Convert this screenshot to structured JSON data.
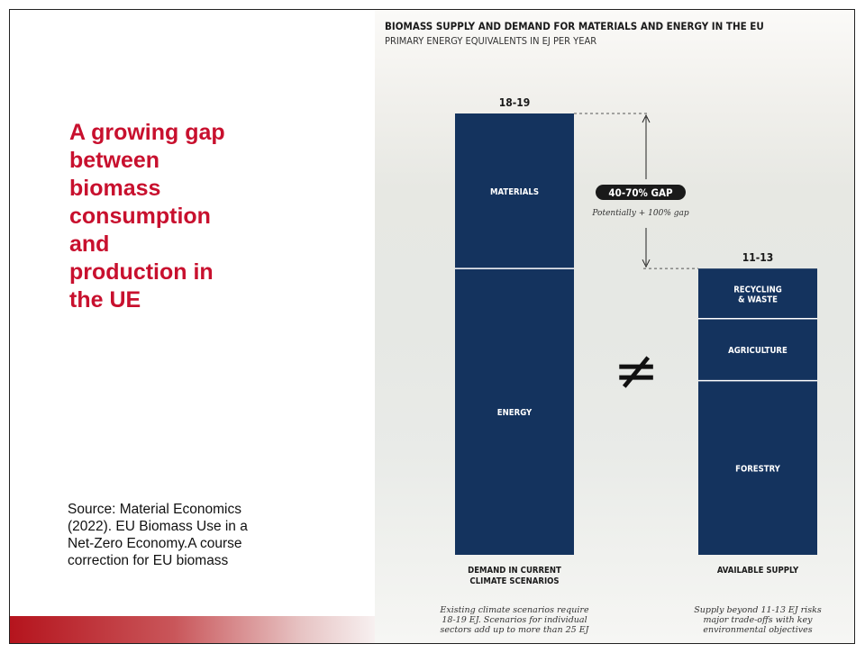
{
  "slide": {
    "title_lines": [
      "A growing gap",
      "between",
      "biomass",
      "consumption",
      "and",
      "production in",
      "the UE"
    ],
    "source_lines": [
      "Source: Material Economics",
      "(2022). EU Biomass Use in a",
      "Net-Zero Economy.A course",
      "correction for EU biomass"
    ]
  },
  "chart_data": {
    "type": "bar",
    "stacked": true,
    "title": "BIOMASS SUPPLY AND DEMAND FOR MATERIALS AND ENERGY IN THE EU",
    "subtitle": "PRIMARY ENERGY EQUIVALENTS IN EJ PER YEAR",
    "unit": "EJ",
    "bars": [
      {
        "label_lines": [
          "DEMAND IN CURRENT",
          "CLIMATE SCENARIOS"
        ],
        "total_label": "18-19",
        "total": 18.5,
        "segments": [
          {
            "name": "ENERGY",
            "value": 12.0
          },
          {
            "name": "MATERIALS",
            "value": 6.5
          }
        ],
        "note_lines": [
          "Existing climate scenarios require",
          "18-19 EJ. Scenarios for individual",
          "sectors add up to more than 25 EJ"
        ]
      },
      {
        "label_lines": [
          "AVAILABLE SUPPLY"
        ],
        "total_label": "11-13",
        "total": 12.0,
        "segments": [
          {
            "name": "FORESTRY",
            "value": 7.3
          },
          {
            "name": "AGRICULTURE",
            "value": 2.6
          },
          {
            "name": "RECYCLING\n& WASTE",
            "value": 2.1
          }
        ],
        "note_lines": [
          "Supply beyond 11-13 EJ risks",
          "major trade-offs with key",
          "environmental objectives"
        ]
      }
    ],
    "gap": {
      "label": "40-70% GAP",
      "note": "Potentially + 100% gap"
    },
    "symbol": "≠",
    "colors": {
      "bar": "#14335e",
      "divider": "#ffffff",
      "gap_badge": "#1a1a1a",
      "text": "#1a1a1a"
    }
  }
}
